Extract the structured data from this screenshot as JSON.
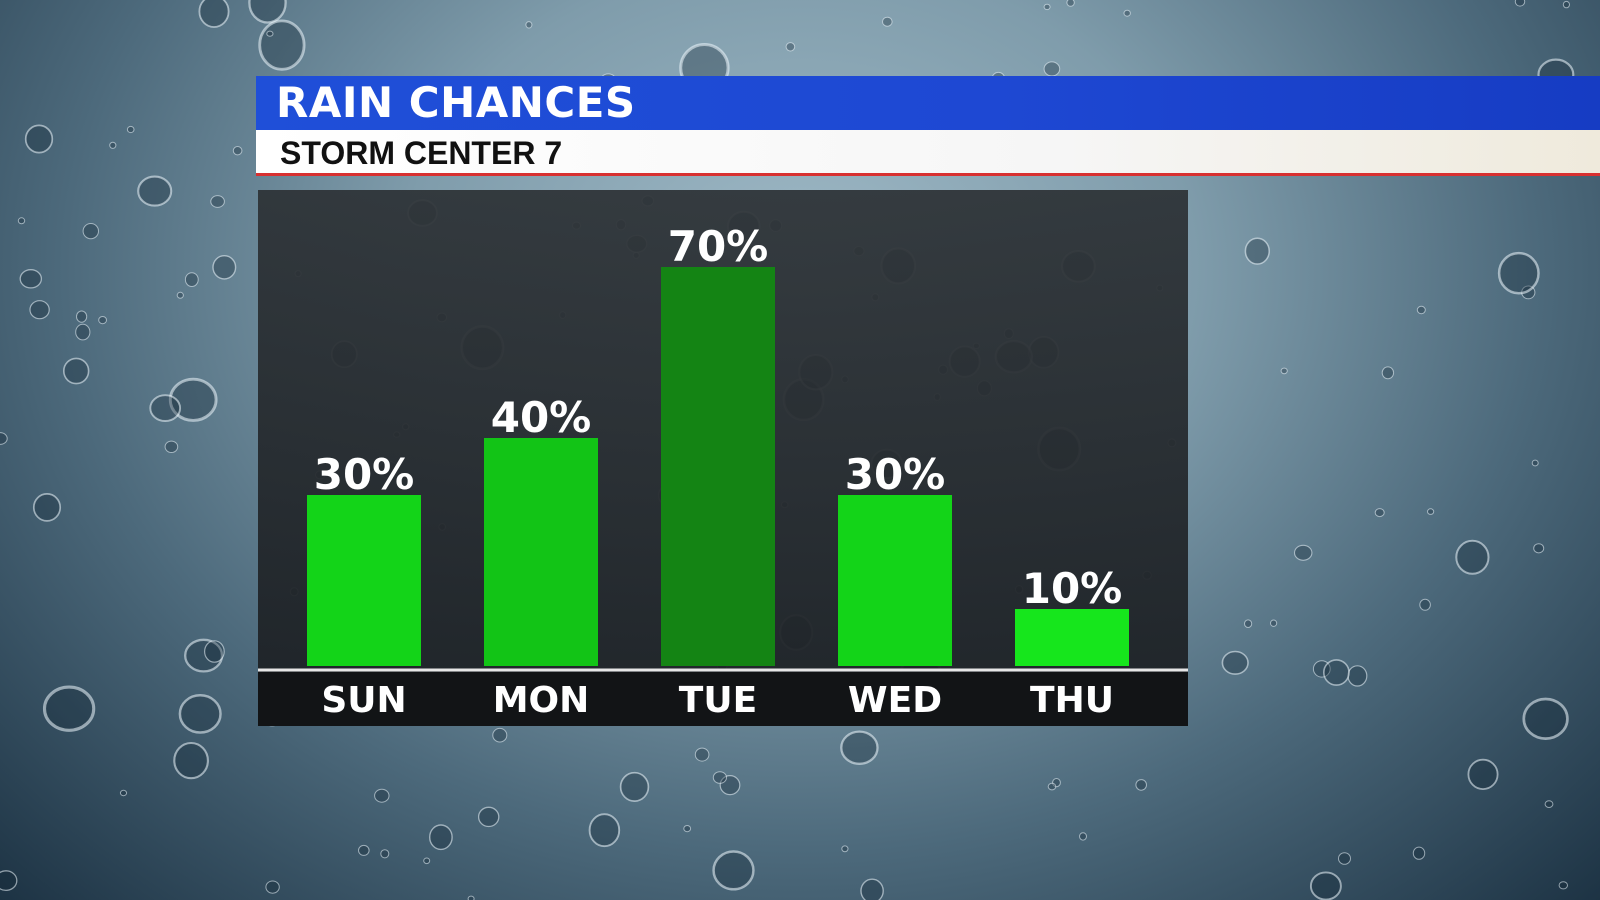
{
  "header": {
    "title": "RAIN CHANCES",
    "subtitle": "STORM CENTER 7"
  },
  "colors": {
    "header_blue": "#1f4fd8",
    "subtitle_underline": "#d83030",
    "bar_green_default": "#13d418",
    "bar_green_peak": "#148414"
  },
  "chart_data": {
    "type": "bar",
    "title": "RAIN CHANCES",
    "subtitle": "STORM CENTER 7",
    "categories": [
      "SUN",
      "MON",
      "TUE",
      "WED",
      "THU"
    ],
    "values": [
      30,
      40,
      70,
      30,
      10
    ],
    "value_labels": [
      "30%",
      "40%",
      "70%",
      "30%",
      "10%"
    ],
    "bar_colors": [
      "#13d418",
      "#12c416",
      "#148414",
      "#13d418",
      "#16e61c"
    ],
    "unit": "%",
    "ylim": [
      0,
      100
    ],
    "xlabel": "",
    "ylabel": "",
    "grid": false,
    "legend": "none"
  }
}
